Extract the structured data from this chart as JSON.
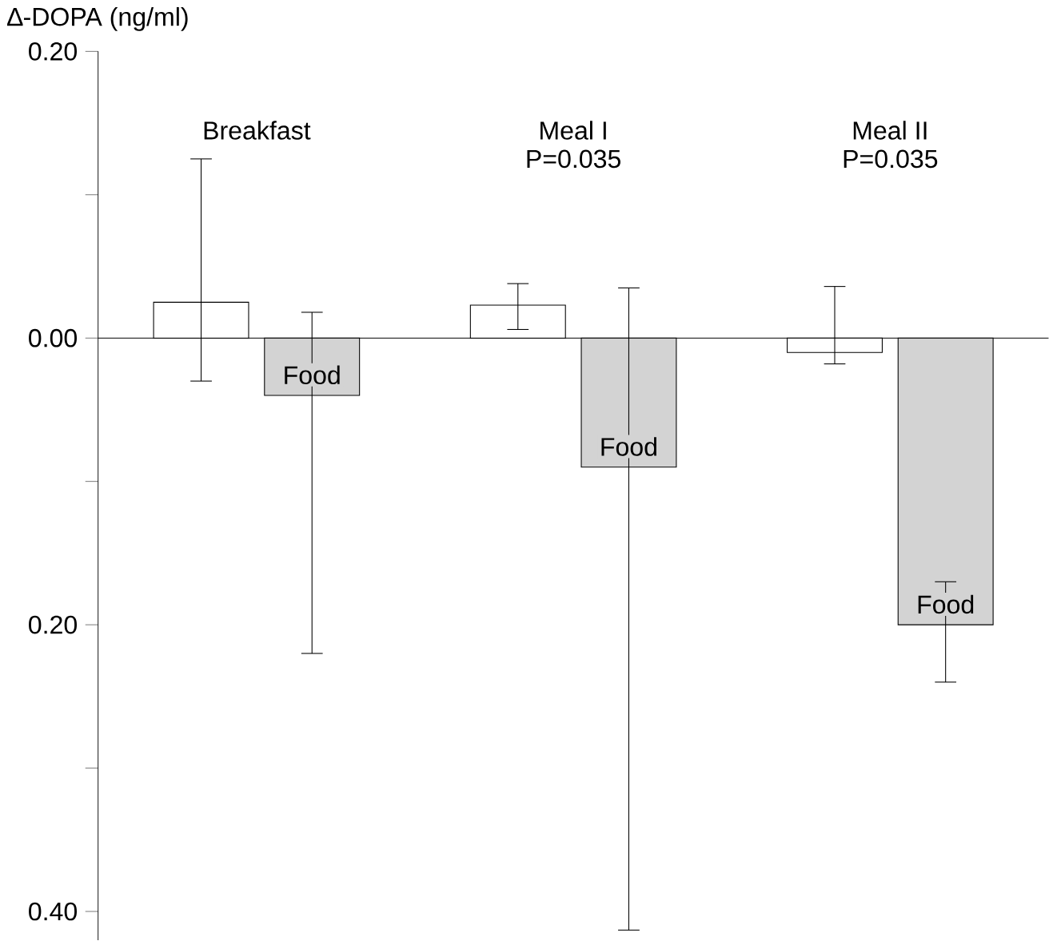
{
  "chart_data": {
    "type": "bar",
    "ylabel": "∆-DOPA (ng/ml)",
    "categories": [
      "Breakfast",
      "Meal I",
      "Meal II"
    ],
    "series": [
      {
        "color": "#ffffff",
        "values": [
          0.025,
          0.023,
          -0.01
        ],
        "errors": [
          [
            -0.03,
            0.125
          ],
          [
            0.006,
            0.038
          ],
          [
            -0.018,
            0.036
          ]
        ]
      },
      {
        "name": "Food",
        "color": "#d3d3d3",
        "values": [
          -0.04,
          -0.09,
          -0.2
        ],
        "errors": [
          [
            -0.22,
            0.018
          ],
          [
            -0.413,
            0.035
          ],
          [
            -0.24,
            -0.17
          ]
        ]
      }
    ],
    "annotations": [
      "P=0.035",
      "P=0.035"
    ],
    "ylim": [
      -0.42,
      0.2
    ],
    "yticks": [
      {
        "value": 0.2,
        "label": "0.20"
      },
      {
        "value": 0.1,
        "label": null
      },
      {
        "value": 0,
        "label": "0.00"
      },
      {
        "value": -0.1,
        "label": null
      },
      {
        "value": -0.2,
        "label": "0.20"
      },
      {
        "value": -0.3,
        "label": null
      },
      {
        "value": -0.4,
        "label": "0.40"
      }
    ],
    "tick_labels": "y"
  }
}
